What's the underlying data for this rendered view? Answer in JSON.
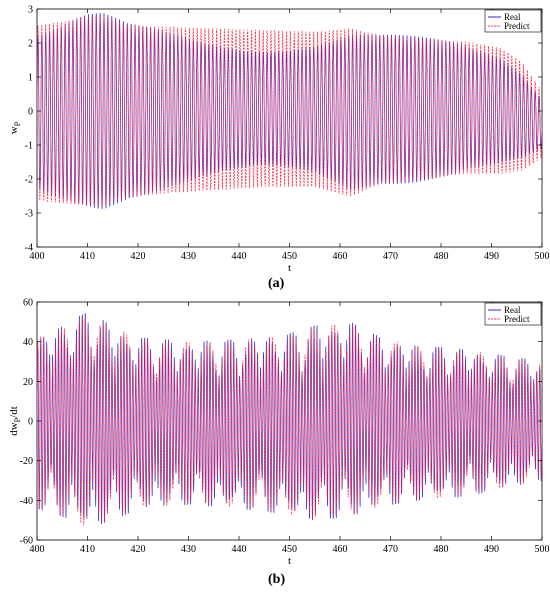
{
  "chart_data": [
    {
      "type": "line",
      "panel": "(a)",
      "xlabel": "t",
      "ylabel": "w_P",
      "xlim": [
        400,
        500
      ],
      "ylim": [
        -4,
        3
      ],
      "xticks": [
        400,
        410,
        420,
        430,
        440,
        450,
        460,
        470,
        480,
        490,
        500
      ],
      "yticks": [
        -4,
        -3,
        -2,
        -1,
        0,
        1,
        2,
        3
      ],
      "legend_position": "top-right",
      "series": [
        {
          "name": "Real",
          "color": "#2b2bd9",
          "style": "solid"
        },
        {
          "name": "Predict",
          "color": "#ff1f3d",
          "style": "dashed"
        }
      ],
      "envelope": {
        "t": [
          400,
          405,
          410,
          413,
          418,
          425,
          435,
          445,
          455,
          462,
          468,
          475,
          485,
          492,
          496,
          500
        ],
        "upper": [
          2.6,
          2.7,
          2.9,
          2.9,
          2.6,
          2.55,
          2.5,
          2.45,
          2.4,
          2.5,
          2.3,
          2.2,
          2.1,
          1.9,
          1.5,
          0.6
        ],
        "lower": [
          -2.7,
          -2.8,
          -2.85,
          -2.9,
          -2.6,
          -2.5,
          -2.4,
          -2.3,
          -2.3,
          -2.6,
          -2.2,
          -2.1,
          -1.9,
          -1.9,
          -1.8,
          -1.4
        ]
      }
    },
    {
      "type": "line",
      "panel": "(b)",
      "xlabel": "t",
      "ylabel": "dw_P/dt",
      "xlim": [
        400,
        500
      ],
      "ylim": [
        -60,
        60
      ],
      "xticks": [
        400,
        410,
        420,
        430,
        440,
        450,
        460,
        470,
        480,
        490,
        500
      ],
      "yticks": [
        -60,
        -40,
        -20,
        0,
        20,
        40,
        60
      ],
      "legend_position": "top-right",
      "series": [
        {
          "name": "Real",
          "color": "#2b2bd9",
          "style": "solid"
        },
        {
          "name": "Predict",
          "color": "#ff1f3d",
          "style": "dashed"
        }
      ],
      "envelope": {
        "t": [
          400,
          405,
          410,
          415,
          420,
          430,
          440,
          450,
          455,
          462,
          468,
          475,
          485,
          492,
          500
        ],
        "upper": [
          42,
          48,
          55,
          48,
          42,
          40,
          41,
          44,
          48,
          50,
          42,
          38,
          36,
          33,
          30
        ],
        "lower": [
          -44,
          -48,
          -54,
          -50,
          -44,
          -42,
          -44,
          -47,
          -50,
          -48,
          -43,
          -40,
          -38,
          -34,
          -30
        ]
      }
    }
  ],
  "panels": {
    "a_label": "(a)",
    "b_label": "(b)"
  }
}
